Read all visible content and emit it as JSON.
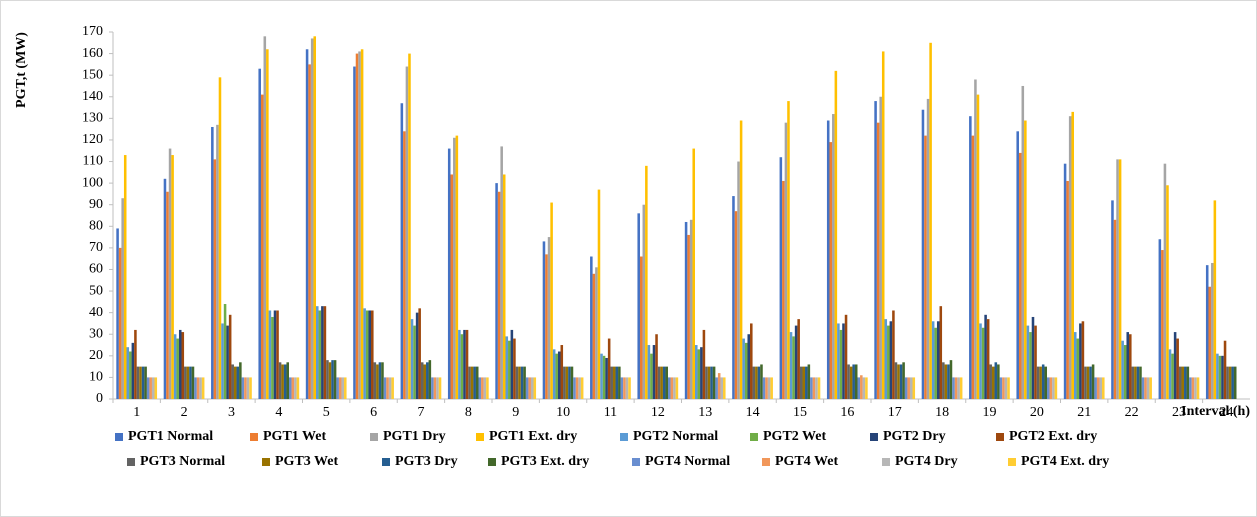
{
  "chart_data": {
    "type": "bar",
    "y_label": "PGT,t (MW)",
    "x_label": "Interval (h)",
    "categories": [
      "1",
      "2",
      "3",
      "4",
      "5",
      "6",
      "7",
      "8",
      "9",
      "10",
      "11",
      "12",
      "13",
      "14",
      "15",
      "16",
      "17",
      "18",
      "19",
      "20",
      "21",
      "22",
      "23",
      "24"
    ],
    "ylim": [
      0,
      170
    ],
    "yticks": [
      0,
      10,
      20,
      30,
      40,
      50,
      60,
      70,
      80,
      90,
      100,
      110,
      120,
      130,
      140,
      150,
      160,
      170
    ],
    "series": [
      {
        "name": "PGT1 Normal",
        "color": "#4472c4",
        "values": [
          79,
          102,
          126,
          153,
          162,
          154,
          137,
          116,
          100,
          73,
          66,
          86,
          82,
          94,
          112,
          129,
          138,
          134,
          131,
          124,
          109,
          92,
          74,
          62
        ]
      },
      {
        "name": "PGT1 Wet",
        "color": "#ed7d31",
        "values": [
          70,
          96,
          111,
          141,
          155,
          160,
          124,
          104,
          96,
          67,
          58,
          66,
          76,
          87,
          101,
          119,
          128,
          122,
          122,
          114,
          101,
          83,
          69,
          52
        ]
      },
      {
        "name": "PGT1 Dry",
        "color": "#a5a5a5",
        "values": [
          93,
          116,
          127,
          168,
          167,
          161,
          154,
          121,
          117,
          75,
          61,
          90,
          83,
          110,
          128,
          132,
          140,
          139,
          148,
          145,
          131,
          111,
          109,
          63
        ]
      },
      {
        "name": "PGT1 Ext. dry",
        "color": "#ffc000",
        "values": [
          113,
          113,
          149,
          162,
          168,
          162,
          160,
          122,
          104,
          91,
          97,
          108,
          116,
          129,
          138,
          152,
          161,
          165,
          141,
          129,
          133,
          111,
          99,
          92
        ]
      },
      {
        "name": "PGT2 Normal",
        "color": "#5b9bd5",
        "values": [
          24,
          30,
          35,
          41,
          43,
          42,
          37,
          32,
          29,
          23,
          21,
          25,
          25,
          28,
          31,
          35,
          37,
          36,
          35,
          34,
          31,
          27,
          23,
          21
        ]
      },
      {
        "name": "PGT2 Wet",
        "color": "#70ad47",
        "values": [
          22,
          28,
          44,
          38,
          41,
          41,
          34,
          30,
          27,
          21,
          20,
          21,
          23,
          26,
          29,
          32,
          34,
          33,
          33,
          31,
          28,
          25,
          21,
          20
        ]
      },
      {
        "name": "PGT2 Dry",
        "color": "#264478",
        "values": [
          26,
          32,
          34,
          41,
          43,
          41,
          40,
          32,
          32,
          22,
          19,
          25,
          24,
          30,
          34,
          35,
          36,
          36,
          39,
          38,
          35,
          31,
          31,
          20
        ]
      },
      {
        "name": "PGT2 Ext. dry",
        "color": "#9e480e",
        "values": [
          32,
          31,
          39,
          41,
          43,
          41,
          42,
          32,
          28,
          25,
          28,
          30,
          32,
          35,
          37,
          39,
          41,
          43,
          37,
          34,
          36,
          30,
          28,
          27
        ]
      },
      {
        "name": "PGT3 Normal",
        "color": "#636363",
        "values": [
          15,
          15,
          16,
          17,
          18,
          17,
          17,
          15,
          15,
          15,
          15,
          15,
          15,
          15,
          15,
          16,
          17,
          17,
          16,
          15,
          15,
          15,
          15,
          15
        ]
      },
      {
        "name": "PGT3 Wet",
        "color": "#997300",
        "values": [
          15,
          15,
          15,
          16,
          17,
          16,
          16,
          15,
          15,
          15,
          15,
          15,
          15,
          15,
          15,
          15,
          16,
          16,
          15,
          15,
          15,
          15,
          15,
          15
        ]
      },
      {
        "name": "PGT3 Dry",
        "color": "#255e91",
        "values": [
          15,
          15,
          15,
          16,
          18,
          17,
          17,
          15,
          15,
          15,
          15,
          15,
          15,
          15,
          15,
          16,
          16,
          16,
          17,
          16,
          15,
          15,
          15,
          15
        ]
      },
      {
        "name": "PGT3 Ext. dry",
        "color": "#43682b",
        "values": [
          15,
          15,
          17,
          17,
          18,
          17,
          18,
          15,
          15,
          15,
          15,
          15,
          15,
          16,
          16,
          16,
          17,
          18,
          16,
          15,
          16,
          15,
          15,
          15
        ]
      },
      {
        "name": "PGT4 Normal",
        "color": "#698ed0",
        "values": [
          10,
          10,
          10,
          10,
          10,
          10,
          10,
          10,
          10,
          10,
          10,
          10,
          10,
          10,
          10,
          10,
          10,
          10,
          10,
          10,
          10,
          10,
          10,
          0
        ]
      },
      {
        "name": "PGT4 Wet",
        "color": "#f1975a",
        "values": [
          10,
          10,
          10,
          10,
          10,
          10,
          10,
          10,
          10,
          10,
          10,
          10,
          12,
          10,
          10,
          11,
          10,
          10,
          10,
          10,
          10,
          10,
          10,
          0
        ]
      },
      {
        "name": "PGT4 Dry",
        "color": "#b7b7b7",
        "values": [
          10,
          10,
          10,
          10,
          10,
          10,
          10,
          10,
          10,
          10,
          10,
          10,
          10,
          10,
          10,
          10,
          10,
          10,
          10,
          10,
          10,
          10,
          10,
          0
        ]
      },
      {
        "name": "PGT4 Ext. dry",
        "color": "#ffcd33",
        "values": [
          10,
          10,
          10,
          10,
          10,
          10,
          10,
          10,
          10,
          10,
          10,
          10,
          10,
          10,
          10,
          10,
          10,
          10,
          10,
          10,
          10,
          10,
          10,
          0
        ]
      }
    ]
  }
}
